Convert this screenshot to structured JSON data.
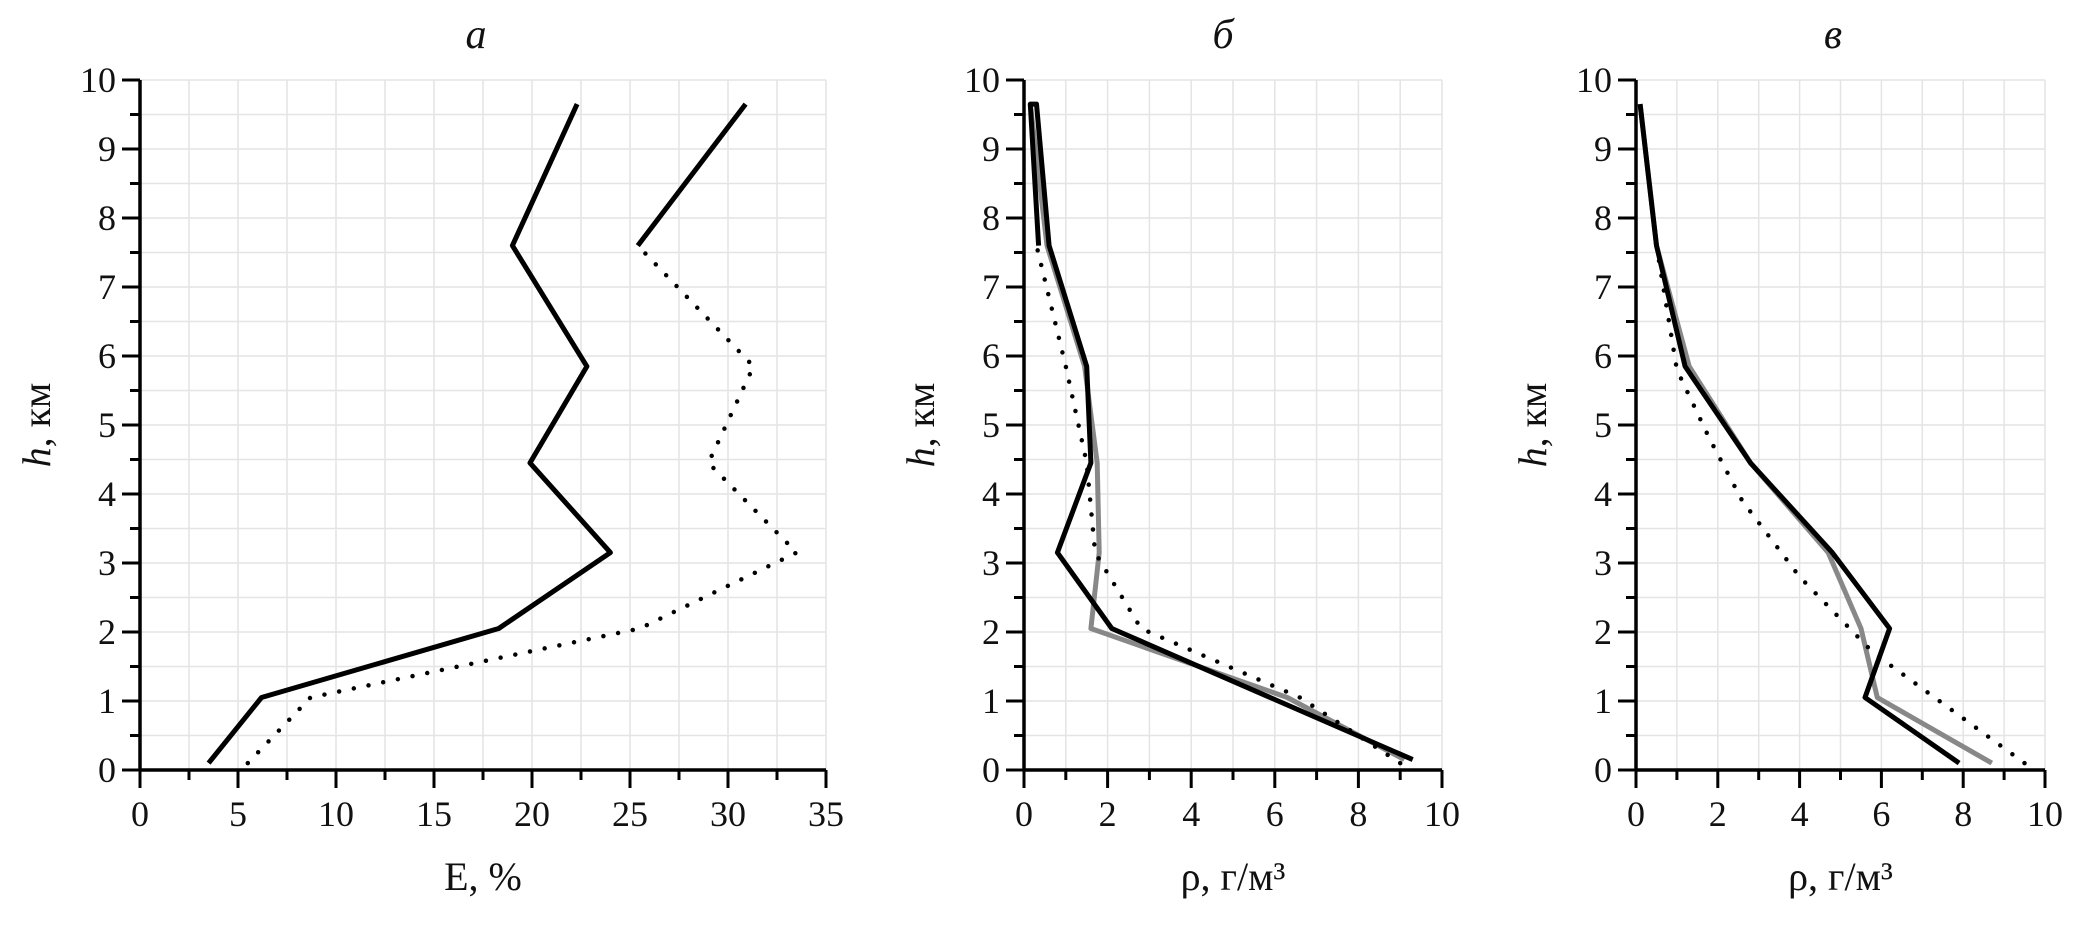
{
  "chart_data": [
    {
      "type": "line",
      "title": "а",
      "xlabel": "E, %",
      "ylabel": "h, км",
      "xlim": [
        0,
        35
      ],
      "ylim": [
        0,
        10
      ],
      "xticks": [
        "0",
        "5",
        "10",
        "15",
        "20",
        "25",
        "30",
        "35"
      ],
      "yticks": [
        "0",
        "1",
        "2",
        "3",
        "4",
        "5",
        "6",
        "7",
        "8",
        "9",
        "10"
      ],
      "grid": true,
      "series": [
        {
          "style": "solid",
          "color": "#000000",
          "points": [
            [
              3.5,
              0.1
            ],
            [
              6.2,
              1.05
            ],
            [
              18.3,
              2.05
            ],
            [
              24.0,
              3.15
            ],
            [
              19.9,
              4.45
            ],
            [
              22.8,
              5.85
            ],
            [
              19.0,
              7.6
            ],
            [
              22.3,
              9.65
            ]
          ]
        },
        {
          "style": "dotted",
          "color": "#000000",
          "points": [
            [
              5.5,
              0.1
            ],
            [
              8.7,
              1.05
            ],
            [
              25.5,
              2.05
            ],
            [
              33.5,
              3.15
            ],
            [
              29.0,
              4.45
            ],
            [
              31.3,
              5.85
            ],
            [
              25.4,
              7.6
            ]
          ]
        },
        {
          "style": "solid",
          "color": "#000000",
          "points": [
            [
              25.4,
              7.6
            ],
            [
              30.9,
              9.65
            ]
          ]
        }
      ]
    },
    {
      "type": "line",
      "title": "б",
      "xlabel": "ρ, г/м³",
      "ylabel": "h, км",
      "xlim": [
        0,
        10
      ],
      "ylim": [
        0,
        10
      ],
      "xticks": [
        "0",
        "2",
        "4",
        "6",
        "8",
        "10"
      ],
      "yticks": [
        "0",
        "1",
        "2",
        "3",
        "4",
        "5",
        "6",
        "7",
        "8",
        "9",
        "10"
      ],
      "grid": true,
      "series": [
        {
          "style": "solid",
          "color": "#888888",
          "points": [
            [
              9.1,
              0.15
            ],
            [
              6.3,
              1.05
            ],
            [
              1.6,
              2.05
            ],
            [
              1.8,
              3.15
            ],
            [
              1.75,
              4.45
            ],
            [
              1.45,
              5.85
            ],
            [
              0.55,
              7.6
            ],
            [
              0.15,
              9.65
            ]
          ]
        },
        {
          "style": "dotted",
          "color": "#000000",
          "points": [
            [
              9.0,
              0.1
            ],
            [
              6.6,
              1.05
            ],
            [
              2.8,
              2.05
            ],
            [
              1.7,
              3.15
            ],
            [
              1.5,
              4.45
            ],
            [
              1.0,
              5.85
            ],
            [
              0.3,
              7.6
            ]
          ]
        },
        {
          "style": "solid",
          "color": "#000000",
          "points": [
            [
              9.3,
              0.15
            ],
            [
              2.1,
              2.05
            ],
            [
              0.8,
              3.15
            ],
            [
              1.6,
              4.45
            ],
            [
              1.5,
              5.85
            ],
            [
              0.6,
              7.6
            ],
            [
              0.3,
              9.65
            ],
            [
              0.15,
              9.65
            ],
            [
              0.35,
              7.6
            ]
          ]
        }
      ]
    },
    {
      "type": "line",
      "title": "в",
      "xlabel": "ρ, г/м³",
      "ylabel": "h, км",
      "xlim": [
        0,
        10
      ],
      "ylim": [
        0,
        10
      ],
      "xticks": [
        "0",
        "2",
        "4",
        "6",
        "8",
        "10"
      ],
      "yticks": [
        "0",
        "1",
        "2",
        "3",
        "4",
        "5",
        "6",
        "7",
        "8",
        "9",
        "10"
      ],
      "grid": true,
      "series": [
        {
          "style": "solid",
          "color": "#888888",
          "points": [
            [
              8.7,
              0.1
            ],
            [
              5.9,
              1.05
            ],
            [
              5.5,
              2.05
            ],
            [
              4.7,
              3.15
            ],
            [
              2.8,
              4.45
            ],
            [
              1.3,
              5.85
            ],
            [
              0.5,
              7.6
            ],
            [
              0.1,
              9.65
            ]
          ]
        },
        {
          "style": "dotted",
          "color": "#000000",
          "points": [
            [
              9.5,
              0.1
            ],
            [
              5.8,
              1.7
            ],
            [
              4.0,
              2.8
            ],
            [
              2.6,
              3.9
            ],
            [
              1.8,
              4.8
            ],
            [
              1.0,
              5.8
            ],
            [
              0.5,
              7.6
            ],
            [
              0.1,
              9.65
            ]
          ]
        },
        {
          "style": "solid",
          "color": "#000000",
          "points": [
            [
              7.9,
              0.1
            ],
            [
              5.6,
              1.05
            ],
            [
              6.2,
              2.05
            ],
            [
              4.8,
              3.15
            ],
            [
              2.8,
              4.45
            ],
            [
              1.2,
              5.85
            ],
            [
              0.5,
              7.6
            ],
            [
              0.1,
              9.65
            ]
          ]
        }
      ]
    }
  ]
}
